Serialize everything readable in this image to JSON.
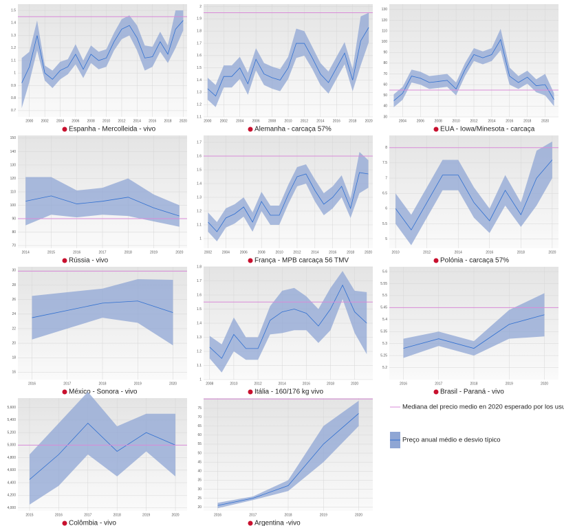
{
  "chart_data": [
    {
      "type": "line",
      "title": "Espanha - Mercolleida - vivo",
      "x": [
        1999,
        2000,
        2001,
        2002,
        2003,
        2004,
        2005,
        2006,
        2007,
        2008,
        2009,
        2010,
        2011,
        2012,
        2013,
        2014,
        2015,
        2016,
        2017,
        2018,
        2019,
        2020
      ],
      "values": [
        0.92,
        1.05,
        1.3,
        1.0,
        0.95,
        1.02,
        1.05,
        1.15,
        1.03,
        1.15,
        1.1,
        1.12,
        1.25,
        1.35,
        1.38,
        1.28,
        1.12,
        1.13,
        1.25,
        1.15,
        1.35,
        1.42
      ],
      "sd": [
        0.2,
        0.12,
        0.12,
        0.06,
        0.07,
        0.07,
        0.06,
        0.08,
        0.07,
        0.07,
        0.07,
        0.07,
        0.07,
        0.08,
        0.08,
        0.1,
        0.1,
        0.08,
        0.08,
        0.07,
        0.15,
        0.08
      ],
      "median": 1.45,
      "xlim": [
        1998.5,
        2020.5
      ],
      "xticks": [
        2000,
        2002,
        2004,
        2006,
        2008,
        2010,
        2012,
        2014,
        2016,
        2018,
        2020
      ],
      "ylim": [
        0.65,
        1.55
      ],
      "yticks": [
        0.7,
        0.8,
        0.9,
        1,
        1.1,
        1.2,
        1.3,
        1.4,
        1.5
      ]
    },
    {
      "type": "line",
      "title": "Alemanha - carcaça 57%",
      "x": [
        2000,
        2001,
        2002,
        2003,
        2004,
        2005,
        2006,
        2007,
        2008,
        2009,
        2010,
        2011,
        2012,
        2013,
        2014,
        2015,
        2016,
        2017,
        2018,
        2019,
        2020
      ],
      "values": [
        1.33,
        1.27,
        1.43,
        1.43,
        1.5,
        1.37,
        1.57,
        1.45,
        1.42,
        1.4,
        1.5,
        1.7,
        1.7,
        1.58,
        1.45,
        1.38,
        1.5,
        1.62,
        1.4,
        1.72,
        1.83
      ],
      "sd": [
        0.09,
        0.09,
        0.09,
        0.09,
        0.09,
        0.09,
        0.09,
        0.09,
        0.09,
        0.09,
        0.09,
        0.12,
        0.1,
        0.09,
        0.09,
        0.09,
        0.09,
        0.09,
        0.09,
        0.2,
        0.12
      ],
      "median": 1.95,
      "xlim": [
        1999.5,
        2020.5
      ],
      "xticks": [
        2000,
        2002,
        2004,
        2006,
        2008,
        2010,
        2012,
        2014,
        2016,
        2018,
        2020
      ],
      "ylim": [
        1.1,
        2.02
      ],
      "yticks": [
        1.1,
        1.2,
        1.3,
        1.4,
        1.5,
        1.6,
        1.7,
        1.8,
        1.9,
        2
      ]
    },
    {
      "type": "line",
      "title": "EUA - Iowa/Minesota - carcaça",
      "x": [
        2003,
        2004,
        2005,
        2006,
        2007,
        2008,
        2009,
        2010,
        2011,
        2012,
        2013,
        2014,
        2015,
        2016,
        2017,
        2018,
        2019,
        2020,
        2021
      ],
      "values": [
        45,
        52,
        68,
        66,
        62,
        63,
        64,
        56,
        74,
        88,
        85,
        88,
        102,
        68,
        62,
        67,
        59,
        60,
        46
      ],
      "sd": [
        6,
        6,
        6,
        6,
        6,
        6,
        6,
        6,
        6,
        6,
        6,
        6,
        10,
        8,
        6,
        6,
        6,
        10,
        6
      ],
      "median": 55,
      "xlim": [
        2002.5,
        2021.5
      ],
      "xticks": [
        2004,
        2006,
        2008,
        2010,
        2012,
        2014,
        2016,
        2018,
        2020
      ],
      "ylim": [
        30,
        135
      ],
      "yticks": [
        30,
        40,
        50,
        60,
        70,
        80,
        90,
        100,
        110,
        120,
        130
      ]
    },
    {
      "type": "line",
      "title": "Rússia - vivo",
      "x": [
        2014,
        2015,
        2016,
        2017,
        2018,
        2019,
        2020
      ],
      "values": [
        103,
        107,
        101,
        103,
        106,
        98,
        92
      ],
      "sd": [
        18,
        14,
        10,
        10,
        14,
        10,
        8
      ],
      "median": 90,
      "xlim": [
        2013.7,
        2020.3
      ],
      "xticks": [
        2014,
        2015,
        2016,
        2017,
        2018,
        2019,
        2020
      ],
      "ylim": [
        68,
        152
      ],
      "yticks": [
        70,
        80,
        90,
        100,
        110,
        120,
        130,
        140,
        150
      ]
    },
    {
      "type": "line",
      "title": "França - MPB carcaça 56 TMV",
      "x": [
        2002,
        2003,
        2004,
        2005,
        2006,
        2007,
        2008,
        2009,
        2010,
        2011,
        2012,
        2013,
        2014,
        2015,
        2016,
        2017,
        2018,
        2019,
        2020
      ],
      "values": [
        1.12,
        1.05,
        1.15,
        1.18,
        1.23,
        1.12,
        1.27,
        1.17,
        1.17,
        1.32,
        1.45,
        1.47,
        1.35,
        1.25,
        1.3,
        1.38,
        1.22,
        1.48,
        1.47
      ],
      "sd": [
        0.07,
        0.07,
        0.07,
        0.07,
        0.07,
        0.07,
        0.07,
        0.07,
        0.07,
        0.07,
        0.07,
        0.07,
        0.08,
        0.08,
        0.08,
        0.08,
        0.07,
        0.15,
        0.1
      ],
      "median": 1.6,
      "xlim": [
        2001.5,
        2020.5
      ],
      "xticks": [
        2002,
        2004,
        2006,
        2008,
        2010,
        2012,
        2014,
        2016,
        2018,
        2020
      ],
      "ylim": [
        0.93,
        1.75
      ],
      "yticks": [
        1,
        1.1,
        1.2,
        1.3,
        1.4,
        1.5,
        1.6,
        1.7
      ]
    },
    {
      "type": "line",
      "title": "Polónia - carcaça 57%",
      "x": [
        2010,
        2011,
        2012,
        2013,
        2014,
        2015,
        2016,
        2017,
        2018,
        2019,
        2020
      ],
      "values": [
        6,
        5.3,
        6.2,
        7.1,
        7.1,
        6.2,
        5.6,
        6.6,
        5.8,
        7,
        7.6
      ],
      "sd": [
        0.5,
        0.5,
        0.5,
        0.5,
        0.5,
        0.5,
        0.4,
        0.5,
        0.4,
        0.9,
        0.6
      ],
      "median": 8,
      "xlim": [
        2009.6,
        2020.4
      ],
      "xticks": [
        2010,
        2012,
        2014,
        2016,
        2018,
        2020
      ],
      "ylim": [
        4.7,
        8.4
      ],
      "yticks": [
        5,
        5.5,
        6,
        6.5,
        7,
        7.5,
        8
      ]
    },
    {
      "type": "line",
      "title": "México - Sonora - vivo",
      "x": [
        2016,
        2017,
        2018,
        2019,
        2020
      ],
      "values": [
        23.5,
        24.5,
        25.5,
        25.8,
        24.2
      ],
      "sd": [
        3,
        2.5,
        2,
        3,
        4.5
      ],
      "median": 29.9,
      "xlim": [
        2015.6,
        2020.4
      ],
      "xticks": [
        2016,
        2017,
        2018,
        2019,
        2020
      ],
      "ylim": [
        15,
        30.5
      ],
      "yticks": [
        16,
        18,
        20,
        22,
        24,
        26,
        28,
        30
      ]
    },
    {
      "type": "line",
      "title": "Itália - 160/176 kg vivo",
      "x": [
        2008,
        2009,
        2010,
        2011,
        2012,
        2013,
        2014,
        2015,
        2016,
        2017,
        2018,
        2019,
        2020,
        2021
      ],
      "values": [
        1.23,
        1.15,
        1.32,
        1.22,
        1.22,
        1.42,
        1.48,
        1.5,
        1.47,
        1.38,
        1.5,
        1.67,
        1.48,
        1.4
      ],
      "sd": [
        0.08,
        0.1,
        0.12,
        0.08,
        0.08,
        0.1,
        0.15,
        0.15,
        0.12,
        0.12,
        0.15,
        0.1,
        0.15,
        0.22
      ],
      "median": 1.55,
      "xlim": [
        2007.5,
        2021.5
      ],
      "xticks": [
        2008,
        2010,
        2012,
        2014,
        2016,
        2018,
        2020
      ],
      "ylim": [
        1,
        1.8
      ],
      "yticks": [
        1,
        1.1,
        1.2,
        1.3,
        1.4,
        1.5,
        1.6,
        1.7,
        1.8
      ]
    },
    {
      "type": "line",
      "title": "Brasil - Paraná - vivo",
      "x": [
        2016,
        2017,
        2018,
        2019,
        2020
      ],
      "values": [
        5.28,
        5.32,
        5.28,
        5.38,
        5.42
      ],
      "sd": [
        0.04,
        0.03,
        0.03,
        0.06,
        0.09
      ],
      "median": 5.45,
      "xlim": [
        2015.6,
        2020.4
      ],
      "xticks": [
        2016,
        2017,
        2018,
        2019,
        2020
      ],
      "ylim": [
        5.15,
        5.62
      ],
      "yticks": [
        5.2,
        5.25,
        5.3,
        5.35,
        5.4,
        5.45,
        5.5,
        5.55,
        5.6
      ]
    },
    {
      "type": "line",
      "title": "Colômbia - vivo",
      "x": [
        2015,
        2016,
        2017,
        2018,
        2019,
        2020
      ],
      "values": [
        4450,
        4850,
        5350,
        4900,
        5200,
        5000
      ],
      "sd": [
        400,
        500,
        500,
        400,
        300,
        500
      ],
      "median": 5000,
      "xlim": [
        2014.6,
        2020.4
      ],
      "xticks": [
        2015,
        2016,
        2017,
        2018,
        2019,
        2020
      ],
      "ylim": [
        3950,
        5750
      ],
      "yticks": [
        {
          "value": 4000,
          "label": "4,000"
        },
        {
          "value": 4200,
          "label": "4,200"
        },
        {
          "value": 4400,
          "label": "4,400"
        },
        {
          "value": 4600,
          "label": "4,600"
        },
        {
          "value": 4800,
          "label": "4,800"
        },
        {
          "value": 5000,
          "label": "5,000"
        },
        {
          "value": 5200,
          "label": "5,200"
        },
        {
          "value": 5400,
          "label": "5,400"
        },
        {
          "value": 5600,
          "label": "5,600"
        }
      ]
    },
    {
      "type": "line",
      "title": "Argentina -vivo",
      "x": [
        2016,
        2017,
        2018,
        2019,
        2020
      ],
      "values": [
        21,
        25,
        32,
        55,
        72
      ],
      "sd": [
        1.5,
        1,
        3,
        10,
        7
      ],
      "median": 80,
      "xlim": [
        2015.6,
        2020.4
      ],
      "xticks": [
        2016,
        2017,
        2018,
        2019,
        2020
      ],
      "ylim": [
        18,
        80.5
      ],
      "yticks": [
        20,
        25,
        30,
        35,
        40,
        45,
        50,
        55,
        60,
        65,
        70,
        75
      ]
    }
  ],
  "legend": {
    "median_label": "Mediana del precio medio en 2020 esperado por los usu",
    "mean_label": "Preço anual médio e desvio típico",
    "median_color": "#d98ad8",
    "band_color": "#8fa6d4",
    "line_color": "#2f6fd0"
  }
}
